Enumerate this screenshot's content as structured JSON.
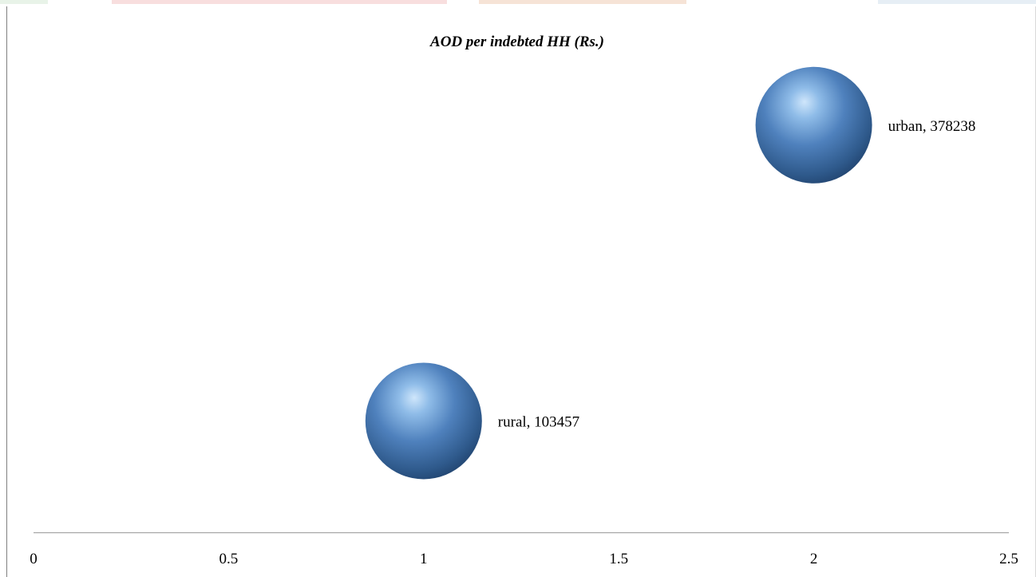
{
  "chart_data": {
    "type": "bubble",
    "title": "AOD per indebted HH (Rs.)",
    "xlabel": "",
    "ylabel": "",
    "xlim": [
      0,
      2.5
    ],
    "ylim": [
      0,
      450000
    ],
    "x_ticks": [
      "0",
      "0.5",
      "1",
      "1.5",
      "2",
      "2.5"
    ],
    "y_axis_visible": false,
    "grid": false,
    "legend": "none",
    "points": [
      {
        "category": "rural",
        "x": 1,
        "y": 103457,
        "label": "rural, 103457"
      },
      {
        "category": "urban",
        "x": 2,
        "y": 378238,
        "label": "urban, 378238"
      }
    ],
    "colors": {
      "bubble": "#4f81bd",
      "axis": "#a6a6a6",
      "border": "#7f7f7f"
    }
  }
}
